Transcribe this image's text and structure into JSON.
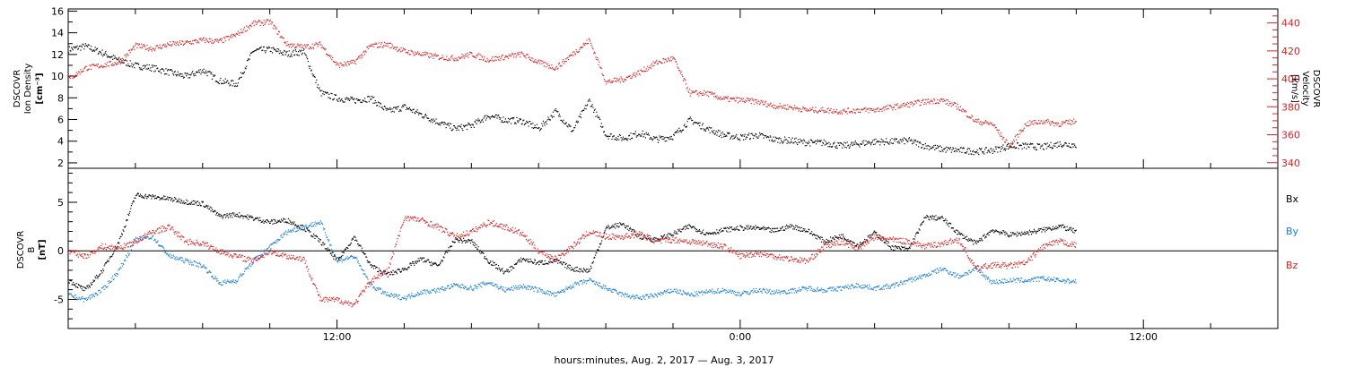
{
  "chart_data": [
    {
      "type": "scatter",
      "panel": "top",
      "ylabel_left": [
        "DSCOVR",
        "Ion Density",
        "[cm⁻³]"
      ],
      "ylabel_right": [
        "DSCOVR",
        "Velocity",
        "[km/s]"
      ],
      "ylim_left": [
        1.5,
        16.2
      ],
      "ylim_right": [
        336,
        450
      ],
      "yticks_left": [
        2,
        4,
        6,
        8,
        10,
        12,
        14,
        16
      ],
      "yticks_right": [
        340,
        360,
        380,
        400,
        420,
        440
      ],
      "x_hours_range": [
        4.0,
        40.0
      ],
      "series": [
        {
          "name": "",
          "axis": "left",
          "color": "#000000",
          "x": [
            4.0,
            4.5,
            5.0,
            5.5,
            6.0,
            6.5,
            7.0,
            7.5,
            8.0,
            8.5,
            9.0,
            9.5,
            10.0,
            10.5,
            11.0,
            11.5,
            12.0,
            12.5,
            13.0,
            13.5,
            14.0,
            14.5,
            15.0,
            15.5,
            16.0,
            16.5,
            17.0,
            17.5,
            18.0,
            18.5,
            19.0,
            19.5,
            20.0,
            20.5,
            21.0,
            21.5,
            22.0,
            22.5,
            23.0,
            23.5,
            24.0,
            24.5,
            25.0,
            25.5,
            26.0,
            26.5,
            27.0,
            27.5,
            28.0,
            28.5,
            29.0,
            29.5,
            30.0,
            30.5,
            31.0,
            31.5,
            32.0,
            32.5,
            33.0,
            33.5,
            34.0
          ],
          "values": [
            12.5,
            12.8,
            12.2,
            11.5,
            11.0,
            10.8,
            10.4,
            10.0,
            10.6,
            9.6,
            9.3,
            12.4,
            12.5,
            12.1,
            12.3,
            8.5,
            8.0,
            7.8,
            8.0,
            6.8,
            7.2,
            6.5,
            5.8,
            5.2,
            5.5,
            6.4,
            6.0,
            5.9,
            5.2,
            6.8,
            5.0,
            7.8,
            4.6,
            4.3,
            4.8,
            4.2,
            4.5,
            6.0,
            5.2,
            4.6,
            4.4,
            4.6,
            4.2,
            4.1,
            3.9,
            3.9,
            3.6,
            3.8,
            4.0,
            4.0,
            4.1,
            3.6,
            3.3,
            3.2,
            3.1,
            3.2,
            3.6,
            3.6,
            3.5,
            3.8,
            3.7
          ]
        },
        {
          "name": "",
          "axis": "right",
          "color": "#e02020",
          "x": [
            4.0,
            4.5,
            5.0,
            5.5,
            6.0,
            6.5,
            7.0,
            7.5,
            8.0,
            8.5,
            9.0,
            9.5,
            10.0,
            10.5,
            11.0,
            11.5,
            12.0,
            12.5,
            13.0,
            13.5,
            14.0,
            14.5,
            15.0,
            15.5,
            16.0,
            16.5,
            17.0,
            17.5,
            18.0,
            18.5,
            19.0,
            19.5,
            20.0,
            20.5,
            21.0,
            21.5,
            22.0,
            22.5,
            23.0,
            23.5,
            24.0,
            24.5,
            25.0,
            25.5,
            26.0,
            26.5,
            27.0,
            27.5,
            28.0,
            28.5,
            29.0,
            29.5,
            30.0,
            30.5,
            31.0,
            31.5,
            32.0,
            32.5,
            33.0,
            33.5,
            34.0
          ],
          "values": [
            400,
            408,
            410,
            412,
            424,
            422,
            425,
            426,
            428,
            427,
            432,
            440,
            441,
            425,
            423,
            425,
            410,
            412,
            424,
            425,
            420,
            418,
            416,
            415,
            418,
            414,
            416,
            418,
            412,
            408,
            418,
            428,
            398,
            400,
            405,
            412,
            415,
            390,
            390,
            386,
            385,
            384,
            381,
            380,
            378,
            378,
            377,
            378,
            378,
            380,
            382,
            384,
            385,
            380,
            370,
            368,
            352,
            368,
            370,
            368,
            370
          ]
        }
      ]
    },
    {
      "type": "scatter",
      "panel": "bottom",
      "ylabel_left": [
        "DSCOVR",
        "B",
        "[nT]"
      ],
      "ylim": [
        -8.0,
        8.5
      ],
      "yticks": [
        -5,
        0,
        5
      ],
      "x_hours_range": [
        4.0,
        40.0
      ],
      "xticks": [
        "12:00",
        "0:00",
        "12:00"
      ],
      "xtick_hours": [
        12,
        24,
        36
      ],
      "xlabel": "hours:minutes, Aug.  2, 2017 — Aug.  3, 2017",
      "series": [
        {
          "name": "Bx",
          "color": "#000000",
          "x": [
            4.0,
            4.5,
            5.0,
            5.5,
            6.0,
            6.5,
            7.0,
            7.5,
            8.0,
            8.5,
            9.0,
            9.5,
            10.0,
            10.5,
            11.0,
            11.5,
            12.0,
            12.5,
            13.0,
            13.5,
            14.0,
            14.5,
            15.0,
            15.5,
            16.0,
            16.5,
            17.0,
            17.5,
            18.0,
            18.5,
            19.0,
            19.5,
            20.0,
            20.5,
            21.0,
            21.5,
            22.0,
            22.5,
            23.0,
            23.5,
            24.0,
            24.5,
            25.0,
            25.5,
            26.0,
            26.5,
            27.0,
            27.5,
            28.0,
            28.5,
            29.0,
            29.5,
            30.0,
            30.5,
            31.0,
            31.5,
            32.0,
            32.5,
            33.0,
            33.5,
            34.0
          ],
          "values": [
            -3,
            -4,
            -2,
            1,
            5.8,
            5.6,
            5.4,
            5.1,
            4.9,
            3.6,
            3.8,
            3.4,
            3.0,
            3.2,
            2.4,
            1.0,
            -1.0,
            1.5,
            -1.5,
            -2.4,
            -1.8,
            -0.8,
            -1.5,
            1.2,
            1.0,
            -1.0,
            -2.2,
            -0.8,
            -1.2,
            -1.0,
            -1.8,
            -2.0,
            2.4,
            2.8,
            1.5,
            1.2,
            1.8,
            2.6,
            1.8,
            2.2,
            2.4,
            2.4,
            2.1,
            2.6,
            2.1,
            1.0,
            1.6,
            0.6,
            1.9,
            0.4,
            0.2,
            3.5,
            3.4,
            1.8,
            0.8,
            2.2,
            1.7,
            1.9,
            2.2,
            2.6,
            2.0
          ]
        },
        {
          "name": "By",
          "color": "#1a7fe0",
          "x": [
            4.0,
            4.5,
            5.0,
            5.5,
            6.0,
            6.5,
            7.0,
            7.5,
            8.0,
            8.5,
            9.0,
            9.5,
            10.0,
            10.5,
            11.0,
            11.5,
            12.0,
            12.5,
            13.0,
            13.5,
            14.0,
            14.5,
            15.0,
            15.5,
            16.0,
            16.5,
            17.0,
            17.5,
            18.0,
            18.5,
            19.0,
            19.5,
            20.0,
            20.5,
            21.0,
            21.5,
            22.0,
            22.5,
            23.0,
            23.5,
            24.0,
            24.5,
            25.0,
            25.5,
            26.0,
            26.5,
            27.0,
            27.5,
            28.0,
            28.5,
            29.0,
            29.5,
            30.0,
            30.5,
            31.0,
            31.5,
            32.0,
            32.5,
            33.0,
            33.5,
            34.0
          ],
          "values": [
            -4.5,
            -5.0,
            -4.0,
            -2.0,
            1.2,
            1.5,
            -0.5,
            -1.0,
            -1.5,
            -3.3,
            -3.0,
            -1.0,
            0.5,
            2.0,
            2.5,
            3.0,
            -1.0,
            -0.5,
            -3.5,
            -4.5,
            -4.8,
            -4.2,
            -4.0,
            -3.5,
            -3.8,
            -3.2,
            -4.0,
            -3.6,
            -4.0,
            -4.5,
            -3.5,
            -3.0,
            -3.8,
            -4.5,
            -4.8,
            -4.5,
            -4.0,
            -4.5,
            -4.2,
            -4.0,
            -4.4,
            -4.0,
            -4.2,
            -4.1,
            -3.8,
            -4.0,
            -3.8,
            -3.5,
            -3.8,
            -3.6,
            -3.0,
            -2.5,
            -1.8,
            -2.6,
            -1.8,
            -3.2,
            -3.0,
            -3.0,
            -2.8,
            -3.0,
            -3.1
          ]
        },
        {
          "name": "Bz",
          "color": "#e02020",
          "x": [
            4.0,
            4.5,
            5.0,
            5.5,
            6.0,
            6.5,
            7.0,
            7.5,
            8.0,
            8.5,
            9.0,
            9.5,
            10.0,
            10.5,
            11.0,
            11.5,
            12.0,
            12.5,
            13.0,
            13.5,
            14.0,
            14.5,
            15.0,
            15.5,
            16.0,
            16.5,
            17.0,
            17.5,
            18.0,
            18.5,
            19.0,
            19.5,
            20.0,
            20.5,
            21.0,
            21.5,
            22.0,
            22.5,
            23.0,
            23.5,
            24.0,
            24.5,
            25.0,
            25.5,
            26.0,
            26.5,
            27.0,
            27.5,
            28.0,
            28.5,
            29.0,
            29.5,
            30.0,
            30.5,
            31.0,
            31.5,
            32.0,
            32.5,
            33.0,
            33.5,
            34.0
          ],
          "values": [
            0.0,
            -0.5,
            0.5,
            0.3,
            1.0,
            2.0,
            2.5,
            1.0,
            0.8,
            0.0,
            -0.5,
            -1.0,
            0.0,
            -0.5,
            -0.8,
            -5.0,
            -5.0,
            -5.5,
            -3.0,
            -2.0,
            3.5,
            3.2,
            2.5,
            1.5,
            2.0,
            3.0,
            2.5,
            1.8,
            0.0,
            -0.8,
            0.5,
            2.0,
            1.5,
            1.5,
            1.8,
            1.0,
            1.2,
            1.0,
            0.8,
            0.5,
            -0.5,
            -0.2,
            -0.5,
            -0.8,
            -1.0,
            0.5,
            1.0,
            0.3,
            1.5,
            1.2,
            1.0,
            0.5,
            0.8,
            1.2,
            -1.8,
            -1.4,
            -1.5,
            -1.2,
            0.5,
            1.0,
            0.6
          ]
        }
      ]
    }
  ]
}
